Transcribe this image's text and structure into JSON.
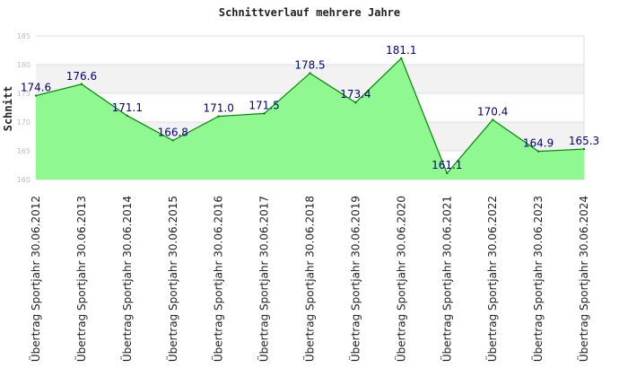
{
  "chart_data": {
    "type": "area",
    "title": "Schnittverlauf mehrere Jahre",
    "ylabel": "Schnitt",
    "xlabel": "",
    "ylim": [
      160,
      185
    ],
    "y_ticks": [
      160,
      165,
      170,
      175,
      180,
      185
    ],
    "grid": true,
    "categories": [
      "Übertrag Sportjahr 30.06.2012",
      "Übertrag Sportjahr 30.06.2013",
      "Übertrag Sportjahr 30.06.2014",
      "Übertrag Sportjahr 30.06.2015",
      "Übertrag Sportjahr 30.06.2016",
      "Übertrag Sportjahr 30.06.2017",
      "Übertrag Sportjahr 30.06.2018",
      "Übertrag Sportjahr 30.06.2019",
      "Übertrag Sportjahr 30.06.2020",
      "Übertrag Sportjahr 30.06.2021",
      "Übertrag Sportjahr 30.06.2022",
      "Übertrag Sportjahr 30.06.2023",
      "Übertrag Sportjahr 30.06.2024"
    ],
    "values": [
      174.6,
      176.6,
      171.1,
      166.8,
      171.0,
      171.5,
      178.5,
      173.4,
      181.1,
      161.1,
      170.4,
      164.9,
      165.3
    ],
    "data_labels": [
      "174.6",
      "176.6",
      "171.1",
      "166.8",
      "171.0",
      "171.5",
      "178.5",
      "173.4",
      "181.1",
      "161.1",
      "170.4",
      "164.9",
      "165.3"
    ],
    "colors": {
      "area_fill": "#90f890",
      "line": "#008800",
      "data_label": "#000080",
      "band_alt": "#f2f2f2",
      "grid": "#dddddd"
    }
  }
}
